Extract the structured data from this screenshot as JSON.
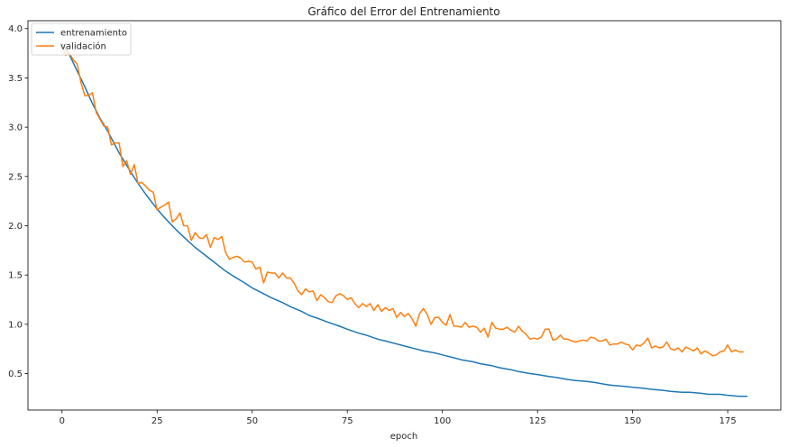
{
  "chart_data": {
    "type": "line",
    "title": "Gráfico del Error del Entrenamiento",
    "xlabel": "epoch",
    "ylabel": "",
    "xlim": [
      -8.95,
      188.95
    ],
    "ylim": [
      0.13,
      4.08
    ],
    "xticks": [
      0,
      25,
      50,
      75,
      100,
      125,
      150,
      175
    ],
    "yticks": [
      0.5,
      1.0,
      1.5,
      2.0,
      2.5,
      3.0,
      3.5,
      4.0
    ],
    "ytick_labels": [
      "0.5",
      "1.0",
      "1.5",
      "2.0",
      "2.5",
      "3.0",
      "3.5",
      "4.0"
    ],
    "grid": false,
    "legend_position": "top-left",
    "series": [
      {
        "name": "entrenamiento",
        "color": "#1f77b4",
        "x": [
          0,
          2,
          4,
          6,
          8,
          10,
          12,
          15,
          18,
          20,
          22,
          25,
          27,
          30,
          33,
          35,
          37,
          40,
          43,
          45,
          48,
          50,
          53,
          55,
          58,
          60,
          63,
          65,
          68,
          70,
          73,
          75,
          78,
          80,
          83,
          85,
          88,
          90,
          93,
          95,
          98,
          100,
          103,
          105,
          108,
          110,
          113,
          115,
          118,
          120,
          123,
          125,
          128,
          130,
          133,
          135,
          138,
          140,
          143,
          145,
          148,
          150,
          153,
          155,
          158,
          160,
          163,
          165,
          168,
          170,
          173,
          175,
          178,
          180
        ],
        "values": [
          3.85,
          3.73,
          3.57,
          3.41,
          3.24,
          3.09,
          2.96,
          2.74,
          2.55,
          2.43,
          2.32,
          2.17,
          2.08,
          1.96,
          1.85,
          1.78,
          1.72,
          1.63,
          1.54,
          1.49,
          1.42,
          1.37,
          1.31,
          1.27,
          1.22,
          1.18,
          1.13,
          1.09,
          1.05,
          1.02,
          0.98,
          0.95,
          0.91,
          0.89,
          0.85,
          0.83,
          0.8,
          0.78,
          0.75,
          0.73,
          0.71,
          0.69,
          0.66,
          0.64,
          0.62,
          0.6,
          0.58,
          0.56,
          0.54,
          0.52,
          0.5,
          0.49,
          0.47,
          0.46,
          0.44,
          0.43,
          0.42,
          0.41,
          0.39,
          0.38,
          0.37,
          0.36,
          0.35,
          0.34,
          0.33,
          0.32,
          0.31,
          0.31,
          0.3,
          0.29,
          0.29,
          0.28,
          0.27,
          0.27
        ]
      },
      {
        "name": "validación",
        "color": "#ff7f0e",
        "x": [
          0,
          1,
          2,
          3,
          4,
          5,
          6,
          7,
          8,
          9,
          10,
          11,
          12,
          13,
          14,
          15,
          16,
          17,
          18,
          19,
          20,
          21,
          22,
          23,
          24,
          25,
          26,
          27,
          28,
          29,
          30,
          31,
          32,
          33,
          34,
          35,
          36,
          37,
          38,
          39,
          40,
          41,
          42,
          43,
          44,
          45,
          46,
          47,
          48,
          49,
          50,
          51,
          52,
          53,
          54,
          55,
          56,
          57,
          58,
          59,
          60,
          61,
          62,
          63,
          64,
          65,
          66,
          67,
          68,
          69,
          70,
          71,
          72,
          73,
          74,
          75,
          76,
          77,
          78,
          79,
          80,
          81,
          82,
          83,
          84,
          85,
          86,
          87,
          88,
          89,
          90,
          91,
          92,
          93,
          94,
          95,
          96,
          97,
          98,
          99,
          100,
          101,
          102,
          103,
          104,
          105,
          106,
          107,
          108,
          109,
          110,
          111,
          112,
          113,
          114,
          115,
          116,
          117,
          118,
          119,
          120,
          121,
          122,
          123,
          124,
          125,
          126,
          127,
          128,
          129,
          130,
          131,
          132,
          133,
          134,
          135,
          136,
          137,
          138,
          139,
          140,
          141,
          142,
          143,
          144,
          145,
          146,
          147,
          148,
          149,
          150,
          151,
          152,
          153,
          154,
          155,
          156,
          157,
          158,
          159,
          160,
          161,
          162,
          163,
          164,
          165,
          166,
          167,
          168,
          169,
          170,
          171,
          172,
          173,
          174,
          175,
          176,
          177,
          178,
          179
        ],
        "values": [
          3.82,
          3.73,
          3.75,
          3.68,
          3.64,
          3.45,
          3.32,
          3.32,
          3.35,
          3.15,
          3.08,
          3.01,
          3.0,
          2.82,
          2.84,
          2.84,
          2.6,
          2.66,
          2.52,
          2.62,
          2.43,
          2.44,
          2.4,
          2.36,
          2.34,
          2.16,
          2.19,
          2.21,
          2.24,
          2.04,
          2.07,
          2.13,
          2.0,
          2.0,
          1.85,
          1.93,
          1.88,
          1.87,
          1.91,
          1.78,
          1.88,
          1.86,
          1.89,
          1.73,
          1.66,
          1.68,
          1.69,
          1.67,
          1.63,
          1.64,
          1.63,
          1.56,
          1.58,
          1.42,
          1.53,
          1.52,
          1.52,
          1.47,
          1.52,
          1.47,
          1.47,
          1.42,
          1.34,
          1.3,
          1.36,
          1.33,
          1.34,
          1.24,
          1.3,
          1.27,
          1.23,
          1.22,
          1.29,
          1.31,
          1.29,
          1.25,
          1.27,
          1.21,
          1.17,
          1.21,
          1.18,
          1.21,
          1.14,
          1.2,
          1.13,
          1.17,
          1.14,
          1.16,
          1.07,
          1.12,
          1.08,
          1.11,
          1.06,
          0.98,
          1.11,
          1.16,
          1.1,
          1.0,
          1.07,
          1.07,
          1.02,
          0.99,
          1.1,
          0.98,
          0.98,
          0.97,
          1.02,
          0.97,
          0.98,
          0.97,
          0.92,
          0.96,
          0.87,
          1.02,
          0.96,
          0.95,
          0.95,
          0.97,
          0.94,
          0.92,
          0.98,
          0.93,
          0.9,
          0.85,
          0.86,
          0.85,
          0.87,
          0.95,
          0.95,
          0.84,
          0.85,
          0.89,
          0.85,
          0.85,
          0.83,
          0.82,
          0.83,
          0.84,
          0.83,
          0.87,
          0.86,
          0.83,
          0.83,
          0.85,
          0.79,
          0.8,
          0.8,
          0.82,
          0.8,
          0.79,
          0.74,
          0.79,
          0.78,
          0.81,
          0.86,
          0.76,
          0.78,
          0.76,
          0.77,
          0.82,
          0.75,
          0.74,
          0.76,
          0.72,
          0.77,
          0.75,
          0.73,
          0.76,
          0.7,
          0.73,
          0.71,
          0.68,
          0.69,
          0.72,
          0.73,
          0.79,
          0.72,
          0.74,
          0.72,
          0.72
        ]
      }
    ]
  }
}
